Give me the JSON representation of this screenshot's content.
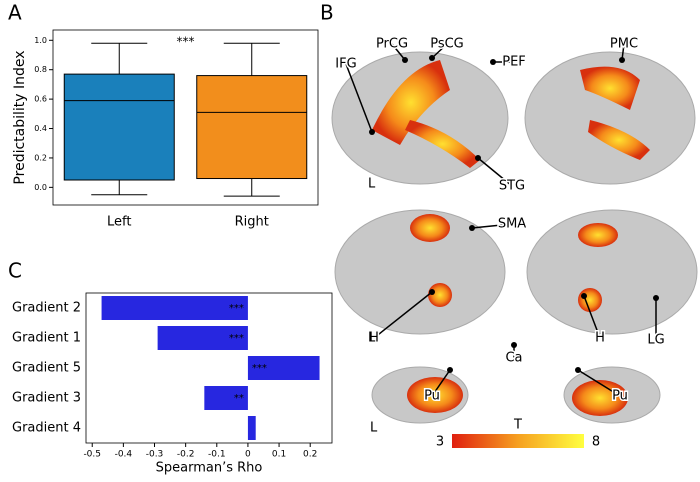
{
  "panels": [
    "A",
    "B",
    "C"
  ],
  "chart_data": [
    {
      "type": "box",
      "ylabel": "Predictability Index",
      "categories": [
        "Left",
        "Right"
      ],
      "series": [
        {
          "name": "Left",
          "color": "#1a80bb",
          "whisker_low": -0.05,
          "q1": 0.05,
          "median": 0.59,
          "q3": 0.77,
          "whisker_high": 0.98
        },
        {
          "name": "Right",
          "color": "#f28e1c",
          "whisker_low": -0.06,
          "q1": 0.06,
          "median": 0.51,
          "q3": 0.76,
          "whisker_high": 0.98
        }
      ],
      "annotation": "***",
      "ylim": [
        -0.12,
        1.07
      ],
      "yticks": [
        {
          "value": 0,
          "label": "0.0"
        },
        0.2,
        0.4,
        0.6,
        0.8,
        {
          "value": 1,
          "label": "1.0"
        }
      ]
    },
    {
      "type": "hbar",
      "xlabel": "Spearman’s Rho",
      "categories": [
        "Gradient 2",
        "Gradient 1",
        "Gradient 5",
        "Gradient 3",
        "Gradient 4"
      ],
      "values": [
        -0.47,
        -0.29,
        0.23,
        -0.14,
        0.025
      ],
      "value_labels": [
        "***",
        "***",
        "***",
        "**",
        null
      ],
      "color": "#2727e0",
      "xlim": [
        -0.52,
        0.27
      ],
      "xticks": [
        -0.5,
        -0.4,
        -0.3,
        -0.2,
        -0.1,
        0,
        0.1,
        0.2
      ]
    }
  ],
  "brain": {
    "labels": [
      "IFG",
      "PrCG",
      "PsCG",
      "PEF",
      "PMC",
      "STG",
      "SMA",
      "H",
      "H",
      "LG",
      "Ca",
      "Pu",
      "Pu"
    ],
    "hemisphere": [
      "L",
      "L",
      "L"
    ],
    "colorbar": {
      "label": "T",
      "min": 3,
      "max": 8
    }
  }
}
